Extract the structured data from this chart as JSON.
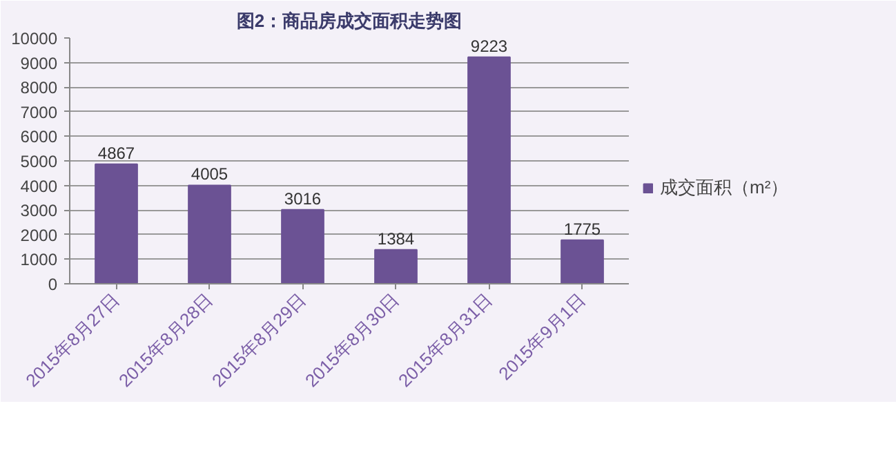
{
  "chart_data": {
    "type": "bar",
    "title": "图2：商品房成交面积走势图",
    "categories": [
      "2015年8月27日",
      "2015年8月28日",
      "2015年8月29日",
      "2015年8月30日",
      "2015年8月31日",
      "2015年9月1日"
    ],
    "series": [
      {
        "name": "成交面积（m²）",
        "color": "#6b5294",
        "values": [
          4867,
          4005,
          3016,
          1384,
          9223,
          1775
        ]
      }
    ],
    "ylim": [
      0,
      10000
    ],
    "yticks": [
      0,
      1000,
      2000,
      3000,
      4000,
      5000,
      6000,
      7000,
      8000,
      9000,
      10000
    ],
    "grid": "y",
    "legend": "right",
    "data_labels": true
  }
}
